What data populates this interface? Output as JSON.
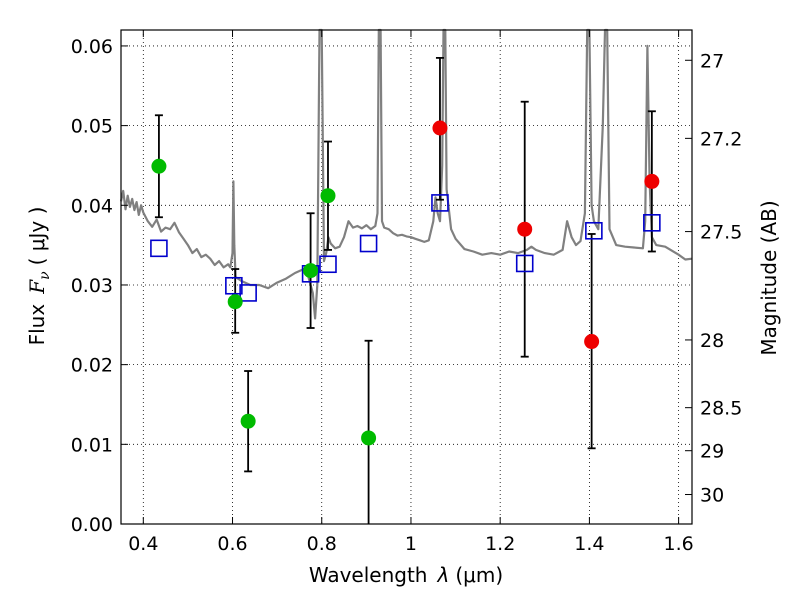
{
  "chart_data": {
    "type": "scatter",
    "xlabel_text": "Wavelength",
    "xlabel_symbol": "λ",
    "xlabel_unit": "(μm)",
    "ylabel_text": "Flux",
    "ylabel_symbol": "F",
    "ylabel_sub": "ν",
    "ylabel_unit": "( μJy )",
    "y2label": "Magnitude (AB)",
    "xlim": [
      0.35,
      1.63
    ],
    "ylim": [
      0.0,
      0.062
    ],
    "grid": true,
    "grid_style": "dotted",
    "x_ticks": [
      0.4,
      0.6,
      0.8,
      1.0,
      1.2,
      1.4,
      1.6
    ],
    "x_tick_labels": [
      "0.4",
      "0.6",
      "0.8",
      "1",
      "1.2",
      "1.4",
      "1.6"
    ],
    "y_ticks": [
      0.0,
      0.01,
      0.02,
      0.03,
      0.04,
      0.05,
      0.06
    ],
    "y_tick_labels": [
      "0.00",
      "0.01",
      "0.02",
      "0.03",
      "0.04",
      "0.05",
      "0.06"
    ],
    "mag_ticks": [
      {
        "label": "27",
        "flux": 0.0582
      },
      {
        "label": "27.2",
        "flux": 0.0484
      },
      {
        "label": "27.5",
        "flux": 0.0367
      },
      {
        "label": "28",
        "flux": 0.0231
      },
      {
        "label": "28.5",
        "flux": 0.0146
      },
      {
        "label": "29",
        "flux": 0.0092
      },
      {
        "label": "30",
        "flux": 0.0037
      }
    ],
    "colors": {
      "model": "#808080",
      "green_points": "#00bb00",
      "red_points": "#ee0000",
      "model_photometry": "#0000cc",
      "error_bars": "#000000"
    },
    "series": [
      {
        "marker": "circle",
        "color": "#00bb00",
        "points": [
          {
            "x": 0.435,
            "y": 0.0449,
            "yerr_low": 0.0385,
            "yerr_high": 0.0513
          },
          {
            "x": 0.606,
            "y": 0.0279,
            "yerr_low": 0.024,
            "yerr_high": 0.032
          },
          {
            "x": 0.635,
            "y": 0.0129,
            "yerr_low": 0.0066,
            "yerr_high": 0.0192
          },
          {
            "x": 0.775,
            "y": 0.0318,
            "yerr_low": 0.0246,
            "yerr_high": 0.039
          },
          {
            "x": 0.814,
            "y": 0.0412,
            "yerr_low": 0.0344,
            "yerr_high": 0.048
          },
          {
            "x": 0.905,
            "y": 0.0108,
            "yerr_low": 0.0,
            "yerr_high": 0.023
          }
        ]
      },
      {
        "marker": "circle",
        "color": "#ee0000",
        "points": [
          {
            "x": 1.065,
            "y": 0.0497,
            "yerr_low": 0.0407,
            "yerr_high": 0.0585
          },
          {
            "x": 1.255,
            "y": 0.037,
            "yerr_low": 0.021,
            "yerr_high": 0.053
          },
          {
            "x": 1.405,
            "y": 0.0229,
            "yerr_low": 0.0095,
            "yerr_high": 0.0364
          },
          {
            "x": 1.54,
            "y": 0.043,
            "yerr_low": 0.0342,
            "yerr_high": 0.0518
          }
        ]
      },
      {
        "marker": "square-open",
        "color": "#0000cc",
        "points": [
          {
            "x": 0.435,
            "y": 0.0346
          },
          {
            "x": 0.603,
            "y": 0.0299
          },
          {
            "x": 0.635,
            "y": 0.029
          },
          {
            "x": 0.775,
            "y": 0.0314
          },
          {
            "x": 0.814,
            "y": 0.0326
          },
          {
            "x": 0.905,
            "y": 0.0352
          },
          {
            "x": 1.065,
            "y": 0.0403
          },
          {
            "x": 1.255,
            "y": 0.0327
          },
          {
            "x": 1.41,
            "y": 0.0368
          },
          {
            "x": 1.54,
            "y": 0.0378
          }
        ]
      },
      {
        "marker": "line",
        "color": "#808080",
        "points": [
          [
            0.35,
            0.0405
          ],
          [
            0.355,
            0.0418
          ],
          [
            0.36,
            0.0395
          ],
          [
            0.365,
            0.0412
          ],
          [
            0.37,
            0.0398
          ],
          [
            0.375,
            0.0408
          ],
          [
            0.38,
            0.0394
          ],
          [
            0.385,
            0.0404
          ],
          [
            0.39,
            0.0388
          ],
          [
            0.395,
            0.04
          ],
          [
            0.4,
            0.0391
          ],
          [
            0.41,
            0.038
          ],
          [
            0.42,
            0.0373
          ],
          [
            0.43,
            0.0382
          ],
          [
            0.44,
            0.0367
          ],
          [
            0.45,
            0.0372
          ],
          [
            0.46,
            0.037
          ],
          [
            0.47,
            0.0378
          ],
          [
            0.48,
            0.0366
          ],
          [
            0.49,
            0.0358
          ],
          [
            0.5,
            0.035
          ],
          [
            0.51,
            0.034
          ],
          [
            0.52,
            0.0345
          ],
          [
            0.53,
            0.0335
          ],
          [
            0.54,
            0.0338
          ],
          [
            0.55,
            0.0333
          ],
          [
            0.56,
            0.0325
          ],
          [
            0.57,
            0.033
          ],
          [
            0.58,
            0.0322
          ],
          [
            0.59,
            0.0326
          ],
          [
            0.595,
            0.0322
          ],
          [
            0.6,
            0.034
          ],
          [
            0.602,
            0.043
          ],
          [
            0.604,
            0.035
          ],
          [
            0.607,
            0.031
          ],
          [
            0.62,
            0.0305
          ],
          [
            0.64,
            0.03
          ],
          [
            0.66,
            0.03
          ],
          [
            0.68,
            0.0296
          ],
          [
            0.7,
            0.0303
          ],
          [
            0.72,
            0.0308
          ],
          [
            0.74,
            0.0315
          ],
          [
            0.76,
            0.032
          ],
          [
            0.77,
            0.031
          ],
          [
            0.78,
            0.029
          ],
          [
            0.785,
            0.0258
          ],
          [
            0.79,
            0.03
          ],
          [
            0.795,
            0.062
          ],
          [
            0.8,
            0.062
          ],
          [
            0.805,
            0.033
          ],
          [
            0.81,
            0.034
          ],
          [
            0.815,
            0.036
          ],
          [
            0.82,
            0.0352
          ],
          [
            0.83,
            0.0346
          ],
          [
            0.84,
            0.0348
          ],
          [
            0.85,
            0.036
          ],
          [
            0.86,
            0.038
          ],
          [
            0.87,
            0.0372
          ],
          [
            0.88,
            0.0374
          ],
          [
            0.89,
            0.0371
          ],
          [
            0.9,
            0.0375
          ],
          [
            0.91,
            0.037
          ],
          [
            0.92,
            0.0374
          ],
          [
            0.925,
            0.039
          ],
          [
            0.928,
            0.062
          ],
          [
            0.932,
            0.062
          ],
          [
            0.935,
            0.038
          ],
          [
            0.94,
            0.0372
          ],
          [
            0.95,
            0.037
          ],
          [
            0.96,
            0.0365
          ],
          [
            0.97,
            0.0362
          ],
          [
            0.98,
            0.0363
          ],
          [
            0.99,
            0.0361
          ],
          [
            1.0,
            0.036
          ],
          [
            1.01,
            0.0358
          ],
          [
            1.02,
            0.0356
          ],
          [
            1.03,
            0.0354
          ],
          [
            1.04,
            0.0356
          ],
          [
            1.05,
            0.038
          ],
          [
            1.055,
            0.041
          ],
          [
            1.06,
            0.039
          ],
          [
            1.065,
            0.038
          ],
          [
            1.07,
            0.045
          ],
          [
            1.073,
            0.062
          ],
          [
            1.077,
            0.062
          ],
          [
            1.08,
            0.042
          ],
          [
            1.09,
            0.037
          ],
          [
            1.1,
            0.0358
          ],
          [
            1.12,
            0.0345
          ],
          [
            1.14,
            0.0342
          ],
          [
            1.16,
            0.0338
          ],
          [
            1.18,
            0.034
          ],
          [
            1.2,
            0.0338
          ],
          [
            1.22,
            0.0342
          ],
          [
            1.24,
            0.034
          ],
          [
            1.26,
            0.0344
          ],
          [
            1.27,
            0.0348
          ],
          [
            1.28,
            0.0344
          ],
          [
            1.3,
            0.034
          ],
          [
            1.32,
            0.0338
          ],
          [
            1.34,
            0.0344
          ],
          [
            1.35,
            0.038
          ],
          [
            1.36,
            0.036
          ],
          [
            1.37,
            0.035
          ],
          [
            1.38,
            0.0355
          ],
          [
            1.39,
            0.039
          ],
          [
            1.395,
            0.062
          ],
          [
            1.4,
            0.062
          ],
          [
            1.405,
            0.04
          ],
          [
            1.41,
            0.038
          ],
          [
            1.42,
            0.037
          ],
          [
            1.43,
            0.05
          ],
          [
            1.435,
            0.062
          ],
          [
            1.44,
            0.062
          ],
          [
            1.445,
            0.037
          ],
          [
            1.46,
            0.035
          ],
          [
            1.48,
            0.0348
          ],
          [
            1.5,
            0.0347
          ],
          [
            1.52,
            0.0346
          ],
          [
            1.525,
            0.038
          ],
          [
            1.53,
            0.06
          ],
          [
            1.535,
            0.043
          ],
          [
            1.54,
            0.036
          ],
          [
            1.55,
            0.035
          ],
          [
            1.57,
            0.0348
          ],
          [
            1.6,
            0.0338
          ],
          [
            1.615,
            0.0332
          ],
          [
            1.63,
            0.0333
          ]
        ]
      }
    ]
  }
}
